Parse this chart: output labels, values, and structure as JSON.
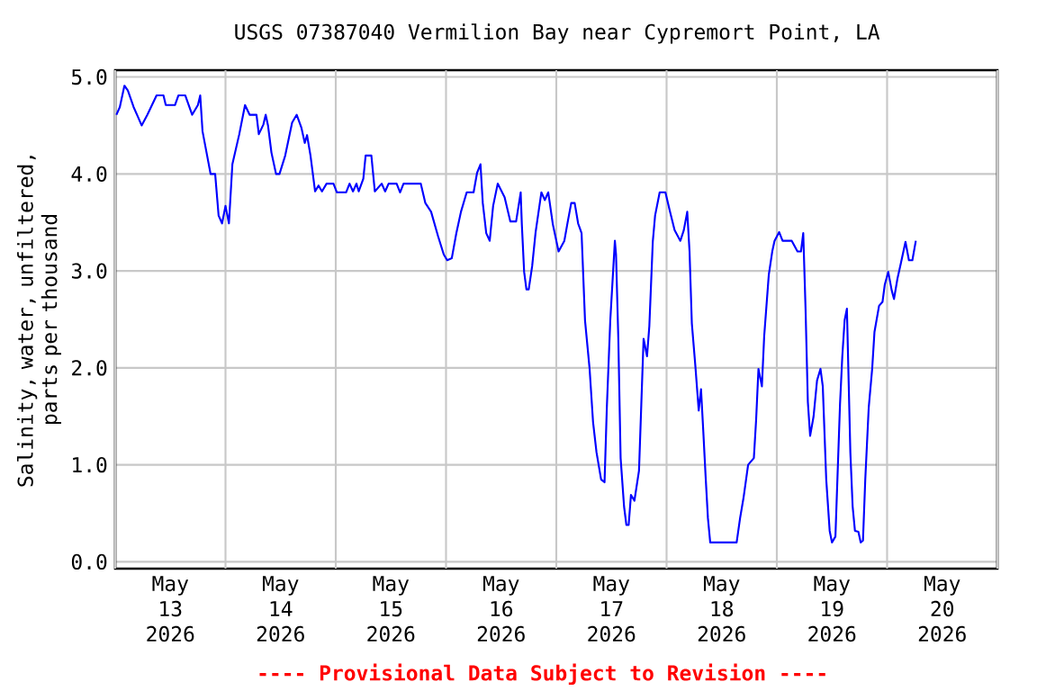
{
  "chart_data": {
    "type": "line",
    "title": "USGS 07387040 Vermilion Bay near Cypremort Point, LA",
    "ylabel": "Salinity, water, unfiltered, parts per thousand",
    "annotations": [
      "---- Provisional Data Subject to Revision ----"
    ],
    "color": "#0000ff",
    "grid": true,
    "xlim": [
      "2026-05-13T00:00",
      "2026-05-21T00:00"
    ],
    "ylim": [
      -0.07,
      5.07
    ],
    "yticks": [
      {
        "value": 0,
        "label": "0.0"
      },
      {
        "value": 1,
        "label": "1.0"
      },
      {
        "value": 2,
        "label": "2.0"
      },
      {
        "value": 3,
        "label": "3.0"
      },
      {
        "value": 4,
        "label": "4.0"
      },
      {
        "value": 5,
        "label": "5.0"
      }
    ],
    "xticks": [
      {
        "value": "2026-05-13T00:00",
        "label": null
      },
      {
        "value": "2026-05-13T12:00",
        "label": "May 13 2026"
      },
      {
        "value": "2026-05-14T00:00",
        "label": null
      },
      {
        "value": "2026-05-14T12:00",
        "label": "May 14 2026"
      },
      {
        "value": "2026-05-15T00:00",
        "label": null
      },
      {
        "value": "2026-05-15T12:00",
        "label": "May 15 2026"
      },
      {
        "value": "2026-05-16T00:00",
        "label": null
      },
      {
        "value": "2026-05-16T12:00",
        "label": "May 16 2026"
      },
      {
        "value": "2026-05-17T00:00",
        "label": null
      },
      {
        "value": "2026-05-17T12:00",
        "label": "May 17 2026"
      },
      {
        "value": "2026-05-18T00:00",
        "label": null
      },
      {
        "value": "2026-05-18T12:00",
        "label": "May 18 2026"
      },
      {
        "value": "2026-05-19T00:00",
        "label": null
      },
      {
        "value": "2026-05-19T12:00",
        "label": "May 19 2026"
      },
      {
        "value": "2026-05-20T00:00",
        "label": null
      },
      {
        "value": "2026-05-20T12:00",
        "label": "May 20 2026"
      },
      {
        "value": "2026-05-21T00:00",
        "label": null
      }
    ],
    "x": [
      "2026-05-13T00:15",
      "2026-05-13T01:00",
      "2026-05-13T02:00",
      "2026-05-13T02:45",
      "2026-05-13T04:00",
      "2026-05-13T04:45",
      "2026-05-13T05:45",
      "2026-05-13T07:00",
      "2026-05-13T09:00",
      "2026-05-13T10:30",
      "2026-05-13T11:00",
      "2026-05-13T13:00",
      "2026-05-13T13:45",
      "2026-05-13T15:15",
      "2026-05-13T16:00",
      "2026-05-13T16:45",
      "2026-05-13T18:00",
      "2026-05-13T18:30",
      "2026-05-13T19:00",
      "2026-05-13T20:00",
      "2026-05-13T20:45",
      "2026-05-13T21:45",
      "2026-05-13T22:30",
      "2026-05-13T23:15",
      "2026-05-14T00:00",
      "2026-05-14T00:45",
      "2026-05-14T01:30",
      "2026-05-14T03:00",
      "2026-05-14T04:15",
      "2026-05-14T05:15",
      "2026-05-14T06:45",
      "2026-05-14T07:15",
      "2026-05-14T08:15",
      "2026-05-14T08:45",
      "2026-05-14T09:15",
      "2026-05-14T10:00",
      "2026-05-14T11:00",
      "2026-05-14T11:45",
      "2026-05-14T13:00",
      "2026-05-14T14:30",
      "2026-05-14T15:30",
      "2026-05-14T16:30",
      "2026-05-14T17:15",
      "2026-05-14T17:45",
      "2026-05-14T18:30",
      "2026-05-14T19:30",
      "2026-05-14T20:15",
      "2026-05-14T21:00",
      "2026-05-14T22:00",
      "2026-05-14T23:30",
      "2026-05-15T00:15",
      "2026-05-15T02:15",
      "2026-05-15T03:00",
      "2026-05-15T03:45",
      "2026-05-15T04:30",
      "2026-05-15T05:00",
      "2026-05-15T06:00",
      "2026-05-15T06:30",
      "2026-05-15T07:45",
      "2026-05-15T08:30",
      "2026-05-15T10:00",
      "2026-05-15T10:45",
      "2026-05-15T11:30",
      "2026-05-15T13:15",
      "2026-05-15T14:00",
      "2026-05-15T14:45",
      "2026-05-15T17:00",
      "2026-05-15T18:30",
      "2026-05-15T19:30",
      "2026-05-15T20:45",
      "2026-05-15T22:15",
      "2026-05-15T23:30",
      "2026-05-16T00:15",
      "2026-05-16T01:15",
      "2026-05-16T02:15",
      "2026-05-16T03:15",
      "2026-05-16T04:30",
      "2026-05-16T06:00",
      "2026-05-16T06:45",
      "2026-05-16T07:30",
      "2026-05-16T08:00",
      "2026-05-16T08:45",
      "2026-05-16T09:30",
      "2026-05-16T10:15",
      "2026-05-16T11:15",
      "2026-05-16T12:45",
      "2026-05-16T14:00",
      "2026-05-16T15:15",
      "2026-05-16T16:15",
      "2026-05-16T16:30",
      "2026-05-16T17:00",
      "2026-05-16T17:30",
      "2026-05-16T18:00",
      "2026-05-16T18:45",
      "2026-05-16T19:30",
      "2026-05-16T20:45",
      "2026-05-16T21:30",
      "2026-05-16T22:15",
      "2026-05-16T23:15",
      "2026-05-17T00:30",
      "2026-05-17T01:45",
      "2026-05-17T02:30",
      "2026-05-17T03:15",
      "2026-05-17T04:00",
      "2026-05-17T04:45",
      "2026-05-17T05:30",
      "2026-05-17T06:15",
      "2026-05-17T07:15",
      "2026-05-17T08:00",
      "2026-05-17T08:45",
      "2026-05-17T09:45",
      "2026-05-17T10:30",
      "2026-05-17T11:00",
      "2026-05-17T11:45",
      "2026-05-17T12:45",
      "2026-05-17T13:00",
      "2026-05-17T13:30",
      "2026-05-17T14:00",
      "2026-05-17T14:45",
      "2026-05-17T15:15",
      "2026-05-17T15:45",
      "2026-05-17T16:15",
      "2026-05-17T17:00",
      "2026-05-17T18:00",
      "2026-05-17T18:30",
      "2026-05-17T19:00",
      "2026-05-17T19:45",
      "2026-05-17T20:15",
      "2026-05-17T21:00",
      "2026-05-17T21:30",
      "2026-05-17T22:30",
      "2026-05-17T23:45",
      "2026-05-18T00:45",
      "2026-05-18T01:45",
      "2026-05-18T03:00",
      "2026-05-18T03:45",
      "2026-05-18T04:30",
      "2026-05-18T05:00",
      "2026-05-18T05:30",
      "2026-05-18T06:15",
      "2026-05-18T07:00",
      "2026-05-18T07:30",
      "2026-05-18T08:00",
      "2026-05-18T08:30",
      "2026-05-18T09:00",
      "2026-05-18T09:30",
      "2026-05-18T15:15",
      "2026-05-18T16:00",
      "2026-05-18T16:45",
      "2026-05-18T17:45",
      "2026-05-18T19:00",
      "2026-05-18T19:30",
      "2026-05-18T20:00",
      "2026-05-18T20:45",
      "2026-05-18T21:15",
      "2026-05-18T22:15",
      "2026-05-18T23:00",
      "2026-05-18T23:30",
      "2026-05-19T00:30",
      "2026-05-19T01:15",
      "2026-05-19T03:15",
      "2026-05-19T04:30",
      "2026-05-19T05:15",
      "2026-05-19T05:45",
      "2026-05-19T06:15",
      "2026-05-19T06:45",
      "2026-05-19T07:15",
      "2026-05-19T08:00",
      "2026-05-19T08:45",
      "2026-05-19T09:30",
      "2026-05-19T10:00",
      "2026-05-19T10:45",
      "2026-05-19T11:30",
      "2026-05-19T12:00",
      "2026-05-19T12:45",
      "2026-05-19T13:15",
      "2026-05-19T13:45",
      "2026-05-19T14:15",
      "2026-05-19T14:45",
      "2026-05-19T15:15",
      "2026-05-19T16:00",
      "2026-05-19T16:30",
      "2026-05-19T17:00",
      "2026-05-19T17:45",
      "2026-05-19T18:15",
      "2026-05-19T18:45",
      "2026-05-19T19:15",
      "2026-05-19T20:00",
      "2026-05-19T20:45",
      "2026-05-19T21:15",
      "2026-05-19T22:15",
      "2026-05-19T23:00",
      "2026-05-19T23:30",
      "2026-05-20T00:15",
      "2026-05-20T01:00",
      "2026-05-20T01:30",
      "2026-05-20T02:15",
      "2026-05-20T03:00",
      "2026-05-20T04:00",
      "2026-05-20T04:45",
      "2026-05-20T05:30",
      "2026-05-20T06:15"
    ],
    "values": [
      4.61,
      4.69,
      4.91,
      4.86,
      4.69,
      4.61,
      4.5,
      4.61,
      4.81,
      4.81,
      4.71,
      4.71,
      4.81,
      4.81,
      4.71,
      4.61,
      4.71,
      4.81,
      4.44,
      4.19,
      4.0,
      4.0,
      3.57,
      3.49,
      3.67,
      3.49,
      4.1,
      4.41,
      4.71,
      4.61,
      4.61,
      4.41,
      4.51,
      4.61,
      4.5,
      4.22,
      4.0,
      4.0,
      4.19,
      4.53,
      4.61,
      4.48,
      4.32,
      4.4,
      4.19,
      3.82,
      3.88,
      3.82,
      3.9,
      3.9,
      3.81,
      3.81,
      3.9,
      3.82,
      3.9,
      3.82,
      3.95,
      4.19,
      4.19,
      3.82,
      3.9,
      3.82,
      3.9,
      3.9,
      3.81,
      3.9,
      3.9,
      3.9,
      3.7,
      3.61,
      3.36,
      3.17,
      3.11,
      3.13,
      3.39,
      3.61,
      3.81,
      3.81,
      4.01,
      4.1,
      3.7,
      3.39,
      3.31,
      3.67,
      3.9,
      3.76,
      3.51,
      3.51,
      3.81,
      3.48,
      2.99,
      2.81,
      2.81,
      3.05,
      3.4,
      3.81,
      3.73,
      3.81,
      3.48,
      3.2,
      3.31,
      3.51,
      3.7,
      3.7,
      3.49,
      3.39,
      2.49,
      1.99,
      1.44,
      1.13,
      0.85,
      0.82,
      1.59,
      2.49,
      3.31,
      3.17,
      2.3,
      1.07,
      0.57,
      0.38,
      0.38,
      0.69,
      0.63,
      0.94,
      1.62,
      2.3,
      2.12,
      2.43,
      3.3,
      3.57,
      3.81,
      3.81,
      3.61,
      3.42,
      3.31,
      3.42,
      3.61,
      3.2,
      2.46,
      2.03,
      1.56,
      1.78,
      1.34,
      0.88,
      0.45,
      0.2,
      0.2,
      0.45,
      0.66,
      1.0,
      1.07,
      1.47,
      1.99,
      1.81,
      2.33,
      2.96,
      3.2,
      3.31,
      3.4,
      3.31,
      3.31,
      3.2,
      3.2,
      3.39,
      2.61,
      1.65,
      1.3,
      1.5,
      1.87,
      1.99,
      1.81,
      0.85,
      0.32,
      0.2,
      0.26,
      0.94,
      1.62,
      2.12,
      2.49,
      2.61,
      1.13,
      0.57,
      0.32,
      0.31,
      0.2,
      0.22,
      0.85,
      1.59,
      1.99,
      2.37,
      2.64,
      2.68,
      2.86,
      2.99,
      2.8,
      2.71,
      2.92,
      3.08,
      3.3,
      3.11,
      3.11,
      3.31
    ]
  }
}
